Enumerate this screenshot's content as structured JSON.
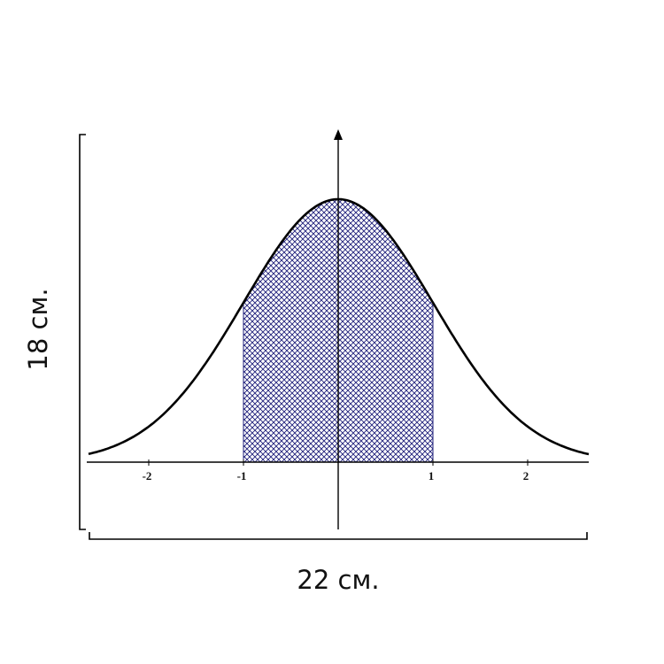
{
  "dimensions": {
    "height_label": "18 см.",
    "width_label": "22 см."
  },
  "axis": {
    "ticks": [
      -2,
      -1,
      1,
      2
    ]
  }
}
